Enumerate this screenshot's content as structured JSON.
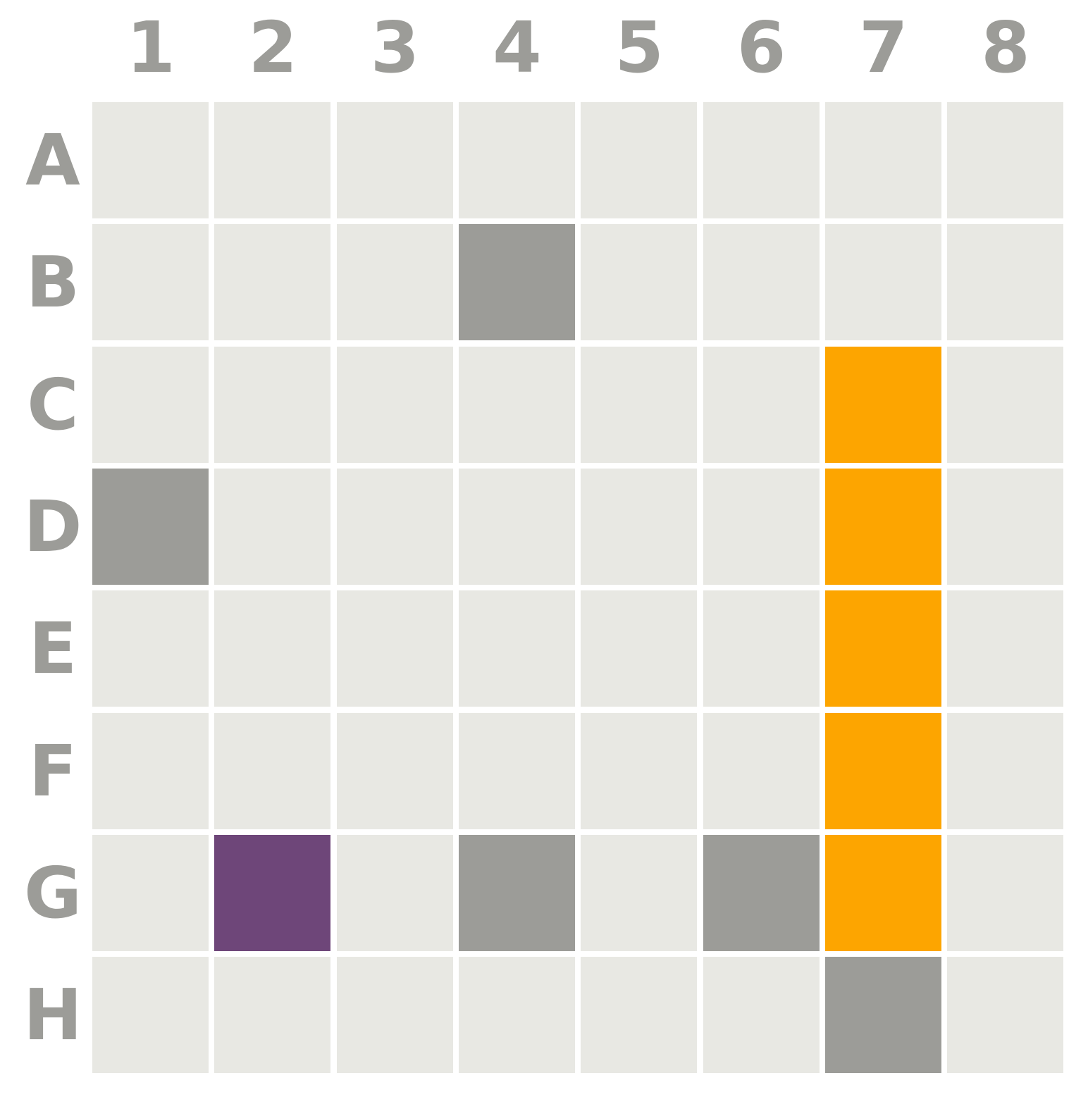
{
  "board": {
    "columns": [
      "1",
      "2",
      "3",
      "4",
      "5",
      "6",
      "7",
      "8"
    ],
    "rows": [
      "A",
      "B",
      "C",
      "D",
      "E",
      "F",
      "G",
      "H"
    ],
    "colors": {
      "empty": "#e8e8e3",
      "blocked": "#9c9c98",
      "piece_orange": "#fda500",
      "piece_purple": "#6e4679",
      "label": "#9c9c98"
    },
    "cells": {
      "B4": "blocked",
      "D1": "blocked",
      "G4": "blocked",
      "G6": "blocked",
      "H7": "blocked",
      "C7": "piece_orange",
      "D7": "piece_orange",
      "E7": "piece_orange",
      "F7": "piece_orange",
      "G7": "piece_orange",
      "G2": "piece_purple"
    }
  }
}
